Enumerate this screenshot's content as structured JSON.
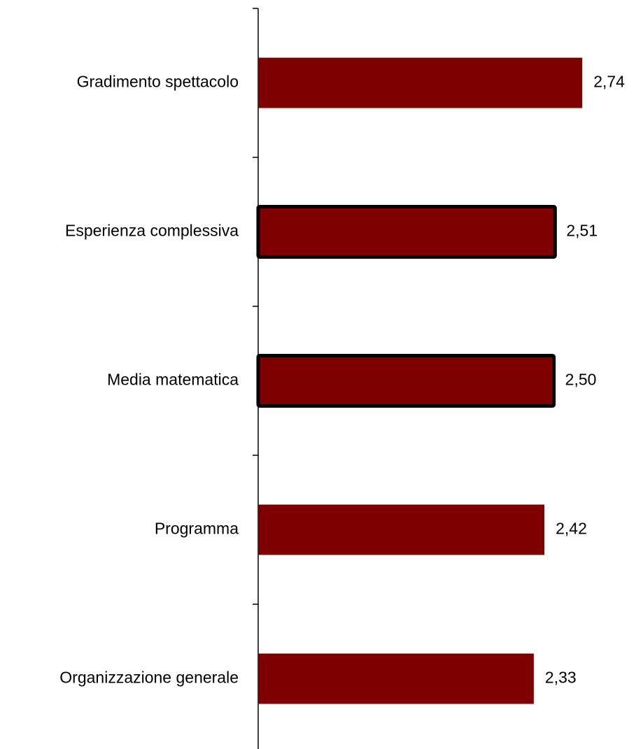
{
  "chart_data": {
    "type": "barh",
    "categories": [
      "Gradimento spettacolo",
      "Esperienza complessiva",
      "Media matematica",
      "Programma",
      "Organizzazione generale"
    ],
    "values": [
      2.74,
      2.51,
      2.5,
      2.42,
      2.33
    ],
    "value_labels": [
      "2,74",
      "2,51",
      "2,50",
      "2,42",
      "2,33"
    ],
    "color": "#7f0000",
    "outlined": [
      false,
      true,
      true,
      false,
      false
    ],
    "outline_color": "#000000",
    "xlim": [
      0,
      3.2
    ]
  }
}
